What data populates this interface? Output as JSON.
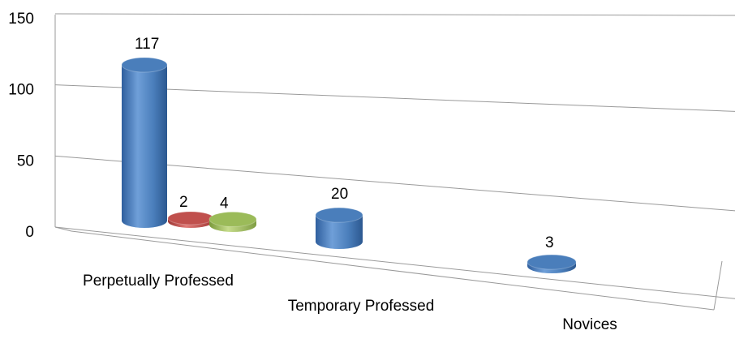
{
  "chart_data": {
    "type": "bar",
    "style": "3d-cylinder",
    "categories": [
      "Perpetually Professed",
      "Temporary Professed",
      "Novices"
    ],
    "series": [
      {
        "color": "#4a7ebb",
        "values": [
          117,
          20,
          3
        ]
      },
      {
        "color": "#c0504d",
        "values": [
          2,
          null,
          null
        ]
      },
      {
        "color": "#9bbb59",
        "values": [
          4,
          null,
          null
        ]
      }
    ],
    "ylim": [
      0,
      150
    ],
    "yticks": [
      "0",
      "50",
      "100",
      "150"
    ],
    "data_labels": [
      "117",
      "2",
      "4",
      "20",
      "3"
    ],
    "grid": true,
    "legend": "none"
  }
}
